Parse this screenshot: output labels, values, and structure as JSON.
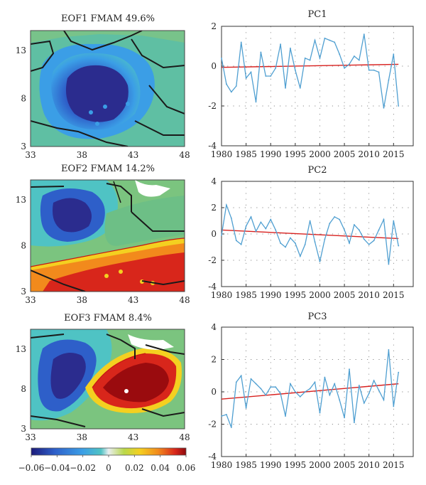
{
  "maps": [
    {
      "title": "EOF1 FMAM 49.6%"
    },
    {
      "title": "EOF2 FMAM 14.2%"
    },
    {
      "title": "EOF3 FMAM 8.4%"
    }
  ],
  "map_axes": {
    "x_ticks": [
      "33",
      "38",
      "43",
      "48"
    ],
    "y_ticks": [
      "13",
      "8",
      "3"
    ]
  },
  "colorbar": {
    "ticks": [
      "−0.06",
      "−0.04",
      "−0.02",
      "0",
      "0.02",
      "0.04",
      "0.06"
    ],
    "colors": [
      "#2b2c8e",
      "#2e5fc9",
      "#3b9ee6",
      "#4fc3c4",
      "#7bc47f",
      "#c7d63a",
      "#f4d020",
      "#f28a1c",
      "#d8261b",
      "#9a0b0e"
    ]
  },
  "line_color": "#4f9fd1",
  "trend_color": "#d8201e",
  "chart_data": [
    {
      "type": "line",
      "title": "PC1",
      "x": [
        1980,
        1981,
        1982,
        1983,
        1984,
        1985,
        1986,
        1987,
        1988,
        1989,
        1990,
        1991,
        1992,
        1993,
        1994,
        1995,
        1996,
        1997,
        1998,
        1999,
        2000,
        2001,
        2002,
        2003,
        2004,
        2005,
        2006,
        2007,
        2008,
        2009,
        2010,
        2011,
        2012,
        2013,
        2014,
        2015,
        2016
      ],
      "y": [
        0.4,
        -0.9,
        -1.3,
        -1.0,
        1.2,
        -0.6,
        -0.3,
        -1.8,
        0.7,
        -0.5,
        -0.5,
        -0.1,
        1.1,
        -1.1,
        0.9,
        -0.2,
        -1.1,
        0.4,
        0.3,
        1.3,
        0.4,
        1.4,
        1.3,
        1.2,
        0.6,
        -0.1,
        0.1,
        0.5,
        0.3,
        1.6,
        -0.2,
        -0.2,
        -0.3,
        -2.1,
        -0.7,
        0.6,
        -2.0
      ],
      "trend": [
        -0.06,
        0.09
      ],
      "xticks": [
        1980,
        1985,
        1990,
        1995,
        2000,
        2005,
        2010,
        2015
      ],
      "yticks": [
        -4,
        -2,
        0,
        2
      ],
      "xlim": [
        1980,
        2019
      ],
      "ylim": [
        -4,
        2
      ],
      "grid": true
    },
    {
      "type": "line",
      "title": "PC2",
      "x": [
        1980,
        1981,
        1982,
        1983,
        1984,
        1985,
        1986,
        1987,
        1988,
        1989,
        1990,
        1991,
        1992,
        1993,
        1994,
        1995,
        1996,
        1997,
        1998,
        1999,
        2000,
        2001,
        2002,
        2003,
        2004,
        2005,
        2006,
        2007,
        2008,
        2009,
        2010,
        2011,
        2012,
        2013,
        2014,
        2015,
        2016
      ],
      "y": [
        -0.1,
        2.2,
        1.2,
        -0.5,
        -0.8,
        0.6,
        1.3,
        0.2,
        0.9,
        0.4,
        1.1,
        0.3,
        -0.7,
        -1.0,
        -0.3,
        -0.7,
        -1.7,
        -0.8,
        1.0,
        -0.6,
        -2.1,
        -0.4,
        0.8,
        1.3,
        1.1,
        0.3,
        -0.7,
        0.7,
        0.3,
        -0.4,
        -0.8,
        -0.5,
        0.3,
        1.1,
        -2.3,
        1.0,
        -0.9
      ],
      "trend": [
        0.3,
        -0.35
      ],
      "xticks": [
        1980,
        1985,
        1990,
        1995,
        2000,
        2005,
        2010,
        2015
      ],
      "yticks": [
        -4,
        -2,
        0,
        2,
        4
      ],
      "xlim": [
        1980,
        2019
      ],
      "ylim": [
        -4,
        4
      ],
      "grid": true
    },
    {
      "type": "line",
      "title": "PC3",
      "x": [
        1980,
        1981,
        1982,
        1983,
        1984,
        1985,
        1986,
        1987,
        1988,
        1989,
        1990,
        1991,
        1992,
        1993,
        1994,
        1995,
        1996,
        1997,
        1998,
        1999,
        2000,
        2001,
        2002,
        2003,
        2004,
        2005,
        2006,
        2007,
        2008,
        2009,
        2010,
        2011,
        2012,
        2013,
        2014,
        2015,
        2016
      ],
      "y": [
        -1.5,
        -1.4,
        -2.2,
        0.6,
        1.0,
        -1.0,
        0.8,
        0.5,
        0.2,
        -0.2,
        0.3,
        0.3,
        -0.1,
        -1.5,
        0.5,
        0.0,
        -0.3,
        0.0,
        0.2,
        0.6,
        -1.3,
        0.9,
        -0.2,
        0.5,
        -0.5,
        -1.6,
        1.4,
        -1.9,
        0.4,
        -0.7,
        -0.1,
        0.7,
        0.1,
        -0.5,
        2.6,
        -0.9,
        1.2
      ],
      "trend": [
        -0.45,
        0.5
      ],
      "xticks": [
        1980,
        1985,
        1990,
        1995,
        2000,
        2005,
        2010,
        2015
      ],
      "yticks": [
        -4,
        -2,
        0,
        2,
        4
      ],
      "xlim": [
        1980,
        2019
      ],
      "ylim": [
        -4,
        4
      ],
      "grid": true
    }
  ]
}
